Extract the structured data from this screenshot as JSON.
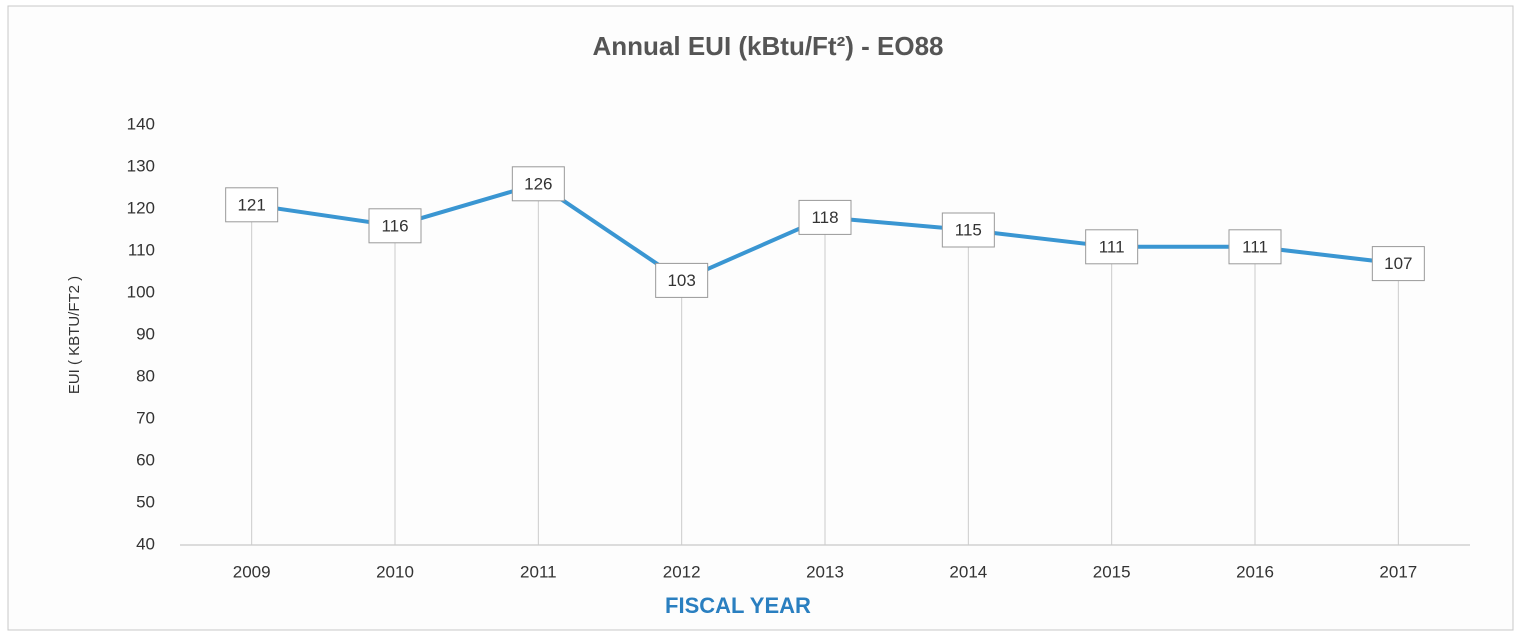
{
  "chart_data": {
    "type": "line",
    "title": "Annual EUI (kBtu/Ft²) - EO88",
    "x_label": "FISCAL YEAR",
    "y_label": "EUI ( KBTU/FT2 )",
    "categories": [
      "2009",
      "2010",
      "2011",
      "2012",
      "2013",
      "2014",
      "2015",
      "2016",
      "2017"
    ],
    "series": [
      {
        "name": "EUI",
        "color": "#3a96d2",
        "values": [
          121,
          116,
          126,
          103,
          118,
          115,
          111,
          111,
          107
        ]
      }
    ],
    "ylim": [
      40,
      140
    ],
    "yticks": [
      40,
      50,
      60,
      70,
      80,
      90,
      100,
      110,
      120,
      130,
      140
    ],
    "grid": false,
    "drop_lines": true,
    "data_labels": true
  }
}
